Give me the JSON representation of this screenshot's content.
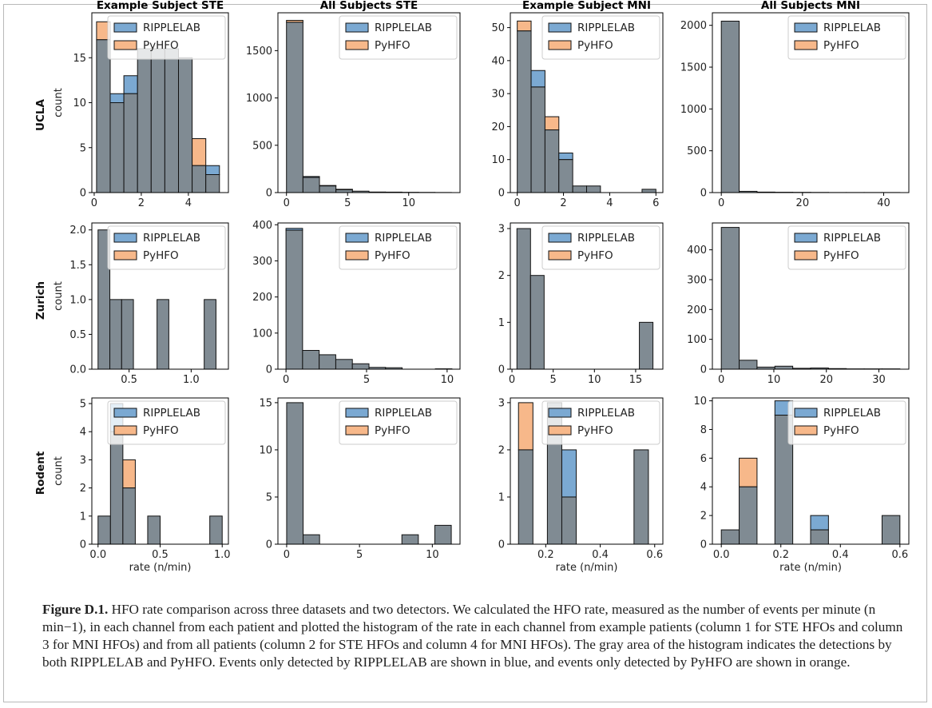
{
  "figure_label": "Figure D.1.",
  "caption": " HFO rate comparison across three datasets and two detectors. We calculated the HFO rate, measured as the number of events per minute (n min−1), in each channel from each patient and plotted the histogram of the rate in each channel from example patients (column 1 for STE HFOs and column 3 for MNI HFOs) and from all patients (column 2 for STE HFOs and column 4 for MNI HFOs). The gray area of the histogram indicates the detections by both RIPPLELAB and PyHFO. Events only detected by RIPPLELAB are shown in blue, and events only detected by PyHFO are shown in orange.",
  "colors": {
    "ripplelab": "#7ba9d2",
    "pyhfo": "#f7b88a",
    "both": "#808b93",
    "edge": "#111111"
  },
  "chart_data": [
    {
      "type": "bar",
      "row": "UCLA",
      "title": "Example Subject STE",
      "ylabel": "count",
      "xlabel": "",
      "legend": "top-right",
      "series": [
        "RIPPLELAB",
        "PyHFO"
      ],
      "xlim": [
        -0.1,
        5.7
      ],
      "ylim": [
        0,
        20
      ],
      "xticks": [
        0,
        2,
        4
      ],
      "yticks": [
        0,
        5,
        10,
        15
      ],
      "bins": [
        [
          0.1,
          0.68,
          17,
          19
        ],
        [
          0.68,
          1.26,
          11,
          10
        ],
        [
          1.26,
          1.84,
          13,
          11
        ],
        [
          1.84,
          2.42,
          16,
          16
        ],
        [
          2.42,
          3.0,
          16,
          16
        ],
        [
          3.0,
          3.58,
          16,
          16
        ],
        [
          3.58,
          4.16,
          15,
          15
        ],
        [
          4.16,
          4.74,
          3,
          6
        ],
        [
          4.74,
          5.32,
          3,
          2
        ]
      ]
    },
    {
      "type": "bar",
      "row": "UCLA",
      "title": "All Subjects STE",
      "ylabel": "",
      "xlabel": "",
      "legend": "top-right",
      "series": [
        "RIPPLELAB",
        "PyHFO"
      ],
      "xlim": [
        -0.7,
        14.2
      ],
      "ylim": [
        0,
        1900
      ],
      "xticks": [
        0,
        5,
        10
      ],
      "yticks": [
        0,
        500,
        1000,
        1500
      ],
      "bins": [
        [
          0,
          1.35,
          1800,
          1820
        ],
        [
          1.35,
          2.7,
          170,
          160
        ],
        [
          2.7,
          4.05,
          75,
          70
        ],
        [
          4.05,
          5.4,
          35,
          30
        ],
        [
          5.4,
          6.75,
          15,
          15
        ],
        [
          6.75,
          8.1,
          6,
          6
        ],
        [
          8.1,
          9.45,
          5,
          5
        ],
        [
          9.45,
          10.8,
          3,
          3
        ],
        [
          10.8,
          12.15,
          2,
          2
        ],
        [
          12.15,
          13.5,
          1,
          1
        ]
      ]
    },
    {
      "type": "bar",
      "row": "UCLA",
      "title": "Example Subject MNI",
      "ylabel": "",
      "xlabel": "",
      "legend": "top-right",
      "series": [
        "RIPPLELAB",
        "PyHFO"
      ],
      "xlim": [
        -0.3,
        6.3
      ],
      "ylim": [
        0,
        54.5
      ],
      "xticks": [
        0,
        2,
        4,
        6
      ],
      "yticks": [
        0,
        10,
        20,
        30,
        40,
        50
      ],
      "bins": [
        [
          0,
          0.6,
          49,
          52
        ],
        [
          0.6,
          1.2,
          37,
          32
        ],
        [
          1.2,
          1.8,
          19,
          23
        ],
        [
          1.8,
          2.4,
          12,
          10
        ],
        [
          2.4,
          3.0,
          2,
          2
        ],
        [
          3.0,
          3.6,
          2,
          2
        ],
        [
          3.6,
          4.2,
          0,
          0
        ],
        [
          4.2,
          4.8,
          0,
          0
        ],
        [
          4.8,
          5.4,
          0,
          0
        ],
        [
          5.4,
          6.0,
          1,
          1
        ]
      ]
    },
    {
      "type": "bar",
      "row": "UCLA",
      "title": "All Subjects MNI",
      "ylabel": "",
      "xlabel": "",
      "legend": "top-right",
      "series": [
        "RIPPLELAB",
        "PyHFO"
      ],
      "xlim": [
        -2.2,
        46.2
      ],
      "ylim": [
        0,
        2150
      ],
      "xticks": [
        0,
        20,
        40
      ],
      "yticks": [
        0,
        500,
        1000,
        1500,
        2000
      ],
      "bins": [
        [
          0,
          4.4,
          2050,
          2050
        ],
        [
          4.4,
          8.8,
          15,
          15
        ],
        [
          8.8,
          13.2,
          6,
          6
        ],
        [
          13.2,
          17.6,
          4,
          4
        ],
        [
          17.6,
          22,
          3,
          3
        ],
        [
          22,
          26.4,
          2,
          2
        ],
        [
          26.4,
          30.8,
          1,
          1
        ],
        [
          30.8,
          35.2,
          1,
          1
        ],
        [
          35.2,
          39.6,
          1,
          1
        ],
        [
          39.6,
          44,
          1,
          1
        ]
      ]
    },
    {
      "type": "bar",
      "row": "Zurich",
      "title": "",
      "ylabel": "count",
      "xlabel": "",
      "legend": "top-right",
      "series": [
        "RIPPLELAB",
        "PyHFO"
      ],
      "xlim": [
        0.2,
        1.3
      ],
      "ylim": [
        0,
        2.1
      ],
      "xticks": [
        0.5,
        1.0
      ],
      "tick_labels": [
        "0.5",
        "1.0"
      ],
      "yticks": [
        0,
        0.5,
        1,
        1.5,
        2
      ],
      "ytick_labels": [
        "0.0",
        "0.5",
        "1.0",
        "1.5",
        "2.0"
      ],
      "bins": [
        [
          0.25,
          0.345,
          2,
          2
        ],
        [
          0.345,
          0.44,
          1,
          1
        ],
        [
          0.44,
          0.535,
          1,
          1
        ],
        [
          0.535,
          0.63,
          0,
          0
        ],
        [
          0.63,
          0.725,
          0,
          0
        ],
        [
          0.725,
          0.82,
          1,
          1
        ],
        [
          0.82,
          0.915,
          0,
          0
        ],
        [
          0.915,
          1.01,
          0,
          0
        ],
        [
          1.01,
          1.105,
          0,
          0
        ],
        [
          1.105,
          1.2,
          1,
          1
        ]
      ]
    },
    {
      "type": "bar",
      "row": "Zurich",
      "title": "",
      "ylabel": "",
      "xlabel": "",
      "legend": "top-right",
      "series": [
        "RIPPLELAB",
        "PyHFO"
      ],
      "xlim": [
        -0.5,
        10.8
      ],
      "ylim": [
        0,
        405
      ],
      "xticks": [
        0,
        5,
        10
      ],
      "yticks": [
        0,
        100,
        200,
        300,
        400
      ],
      "bins": [
        [
          0,
          1.03,
          390,
          385
        ],
        [
          1.03,
          2.06,
          52,
          52
        ],
        [
          2.06,
          3.09,
          40,
          40
        ],
        [
          3.09,
          4.12,
          27,
          27
        ],
        [
          4.12,
          5.15,
          15,
          15
        ],
        [
          5.15,
          6.18,
          5,
          5
        ],
        [
          6.18,
          7.21,
          4,
          4
        ],
        [
          7.21,
          8.24,
          0,
          0
        ],
        [
          8.24,
          9.27,
          0,
          0
        ],
        [
          9.27,
          10.3,
          1,
          1
        ]
      ]
    },
    {
      "type": "bar",
      "row": "Zurich",
      "title": "",
      "ylabel": "",
      "xlabel": "",
      "legend": "top-right",
      "series": [
        "RIPPLELAB",
        "PyHFO"
      ],
      "xlim": [
        -0.2,
        18.3
      ],
      "ylim": [
        0,
        3.12
      ],
      "xticks": [
        0,
        5,
        10,
        15
      ],
      "yticks": [
        0,
        1,
        2,
        3
      ],
      "bins": [
        [
          0.6,
          2.25,
          3,
          3
        ],
        [
          2.25,
          3.9,
          2,
          2
        ],
        [
          3.9,
          5.55,
          0,
          0
        ],
        [
          5.55,
          7.2,
          0,
          0
        ],
        [
          7.2,
          8.85,
          0,
          0
        ],
        [
          8.85,
          10.5,
          0,
          0
        ],
        [
          10.5,
          12.15,
          0,
          0
        ],
        [
          12.15,
          13.8,
          0,
          0
        ],
        [
          13.8,
          15.45,
          0,
          0
        ],
        [
          15.45,
          17.1,
          1,
          1
        ]
      ]
    },
    {
      "type": "bar",
      "row": "Zurich",
      "title": "",
      "ylabel": "",
      "xlabel": "",
      "legend": "top-right",
      "series": [
        "RIPPLELAB",
        "PyHFO"
      ],
      "xlim": [
        -1.7,
        35.7
      ],
      "ylim": [
        0,
        490
      ],
      "xticks": [
        0,
        10,
        20,
        30
      ],
      "yticks": [
        0,
        100,
        200,
        300,
        400
      ],
      "bins": [
        [
          0,
          3.4,
          475,
          475
        ],
        [
          3.4,
          6.8,
          30,
          30
        ],
        [
          6.8,
          10.2,
          7,
          7
        ],
        [
          10.2,
          13.6,
          10,
          10
        ],
        [
          13.6,
          17,
          3,
          3
        ],
        [
          17,
          20.4,
          4,
          4
        ],
        [
          20.4,
          23.8,
          2,
          2
        ],
        [
          23.8,
          27.2,
          1,
          1
        ],
        [
          27.2,
          30.6,
          1,
          1
        ],
        [
          30.6,
          34,
          1,
          1
        ]
      ]
    },
    {
      "type": "bar",
      "row": "Rodent",
      "title": "",
      "ylabel": "count",
      "xlabel": "rate (n/min)",
      "legend": "top-right",
      "series": [
        "RIPPLELAB",
        "PyHFO"
      ],
      "xlim": [
        -0.05,
        1.05
      ],
      "ylim": [
        0,
        5.2
      ],
      "xticks": [
        0,
        0.5,
        1.0
      ],
      "tick_labels": [
        "0.0",
        "0.5",
        "1.0"
      ],
      "yticks": [
        0,
        1,
        2,
        3,
        4,
        5
      ],
      "bins": [
        [
          0,
          0.1,
          1,
          1
        ],
        [
          0.1,
          0.2,
          5,
          4
        ],
        [
          0.2,
          0.3,
          2,
          3
        ],
        [
          0.3,
          0.4,
          0,
          0
        ],
        [
          0.4,
          0.5,
          1,
          1
        ],
        [
          0.5,
          0.6,
          0,
          0
        ],
        [
          0.6,
          0.7,
          0,
          0
        ],
        [
          0.7,
          0.8,
          0,
          0
        ],
        [
          0.8,
          0.9,
          0,
          0
        ],
        [
          0.9,
          1.0,
          1,
          1
        ]
      ]
    },
    {
      "type": "bar",
      "row": "Rodent",
      "title": "",
      "ylabel": "",
      "xlabel": "",
      "legend": "top-right",
      "series": [
        "RIPPLELAB",
        "PyHFO"
      ],
      "xlim": [
        -0.6,
        11.9
      ],
      "ylim": [
        0,
        15.5
      ],
      "xticks": [
        0,
        5,
        10
      ],
      "yticks": [
        0,
        5,
        10,
        15
      ],
      "bins": [
        [
          0,
          1.13,
          15,
          15
        ],
        [
          1.13,
          2.26,
          1,
          1
        ],
        [
          2.26,
          3.39,
          0,
          0
        ],
        [
          3.39,
          4.52,
          0,
          0
        ],
        [
          4.52,
          5.65,
          0,
          0
        ],
        [
          5.65,
          6.78,
          0,
          0
        ],
        [
          6.78,
          7.91,
          0,
          0
        ],
        [
          7.91,
          9.04,
          1,
          1
        ],
        [
          9.04,
          10.17,
          0,
          0
        ],
        [
          10.17,
          11.3,
          2,
          2
        ]
      ]
    },
    {
      "type": "bar",
      "row": "Rodent",
      "title": "",
      "ylabel": "",
      "xlabel": "rate (n/min)",
      "legend": "top-right",
      "series": [
        "RIPPLELAB",
        "PyHFO"
      ],
      "xlim": [
        0.07,
        0.63
      ],
      "ylim": [
        0,
        3.1
      ],
      "xticks": [
        0.2,
        0.4,
        0.6
      ],
      "tick_labels": [
        "0.2",
        "0.4",
        "0.6"
      ],
      "yticks": [
        0,
        1,
        2,
        3
      ],
      "bins": [
        [
          0.1,
          0.153,
          2,
          3
        ],
        [
          0.153,
          0.206,
          0,
          0
        ],
        [
          0.206,
          0.259,
          3,
          3
        ],
        [
          0.259,
          0.312,
          2,
          1
        ],
        [
          0.312,
          0.365,
          0,
          0
        ],
        [
          0.365,
          0.418,
          0,
          0
        ],
        [
          0.418,
          0.471,
          0,
          0
        ],
        [
          0.471,
          0.524,
          0,
          0
        ],
        [
          0.524,
          0.577,
          2,
          2
        ]
      ]
    },
    {
      "type": "bar",
      "row": "Rodent",
      "title": "",
      "ylabel": "",
      "xlabel": "rate (n/min)",
      "legend": "top-right",
      "series": [
        "RIPPLELAB",
        "PyHFO"
      ],
      "xlim": [
        -0.03,
        0.63
      ],
      "ylim": [
        0,
        10.2
      ],
      "xticks": [
        0,
        0.2,
        0.4,
        0.6
      ],
      "tick_labels": [
        "0.0",
        "0.2",
        "0.4",
        "0.6"
      ],
      "yticks": [
        0,
        2,
        4,
        6,
        8,
        10
      ],
      "bins": [
        [
          0,
          0.06,
          1,
          1
        ],
        [
          0.06,
          0.12,
          4,
          6
        ],
        [
          0.12,
          0.18,
          0,
          0
        ],
        [
          0.18,
          0.24,
          10,
          9
        ],
        [
          0.24,
          0.3,
          0,
          0
        ],
        [
          0.3,
          0.36,
          2,
          1
        ],
        [
          0.36,
          0.42,
          0,
          0
        ],
        [
          0.42,
          0.48,
          0,
          0
        ],
        [
          0.48,
          0.54,
          0,
          0
        ],
        [
          0.54,
          0.6,
          2,
          2
        ]
      ]
    }
  ]
}
